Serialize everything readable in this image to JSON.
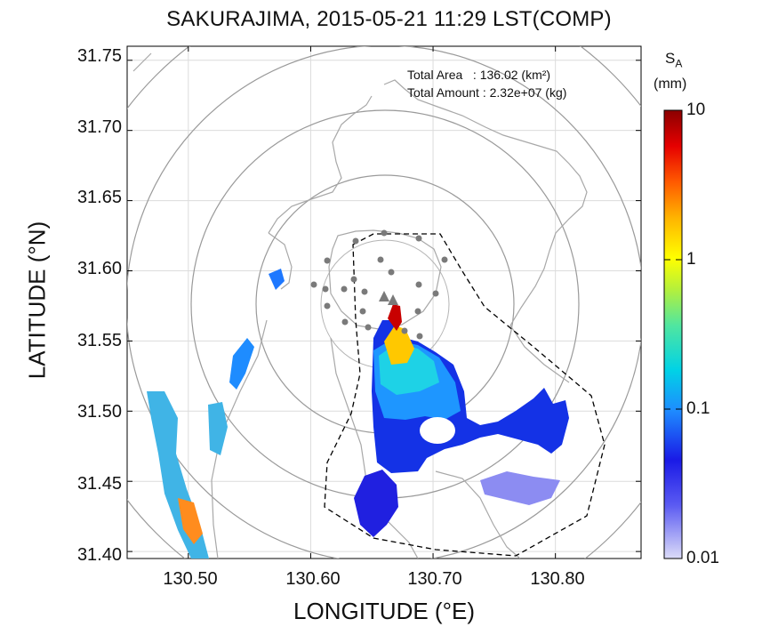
{
  "title": "SAKURAJIMA, 2015-05-21 11:29 LST(COMP)",
  "map": {
    "xlabel": "LONGITUDE (°E)",
    "ylabel": "LATITUDE (°N)",
    "xlim": [
      130.45,
      130.87
    ],
    "ylim": [
      31.395,
      31.76
    ],
    "x_ticks": [
      130.5,
      130.6,
      130.7,
      130.8
    ],
    "x_tick_labels": [
      "130.50",
      "130.60",
      "130.70",
      "130.80"
    ],
    "y_ticks": [
      31.75,
      31.7,
      31.65,
      31.6,
      31.55,
      31.5,
      31.45,
      31.4
    ],
    "y_tick_labels": [
      "31.75",
      "31.70",
      "31.65",
      "31.60",
      "31.55",
      "31.50",
      "31.45",
      "31.40"
    ],
    "grid": true,
    "summary": {
      "area_line": "Total Area   : 136.02 (km²)",
      "amount_line": "Total Amount : 2.32e+07 (kg)"
    }
  },
  "colorbar": {
    "variable": "S",
    "subscript": "A",
    "unit": "(mm)",
    "scale": "log",
    "range": [
      0.01,
      10
    ],
    "labels": [
      "10",
      "1",
      "0.1",
      "0.01"
    ]
  },
  "colors": {
    "ring": "#9a9a9a",
    "coast": "#a0a0a0",
    "station": "#7a7a7a",
    "boundary": "#000000"
  }
}
